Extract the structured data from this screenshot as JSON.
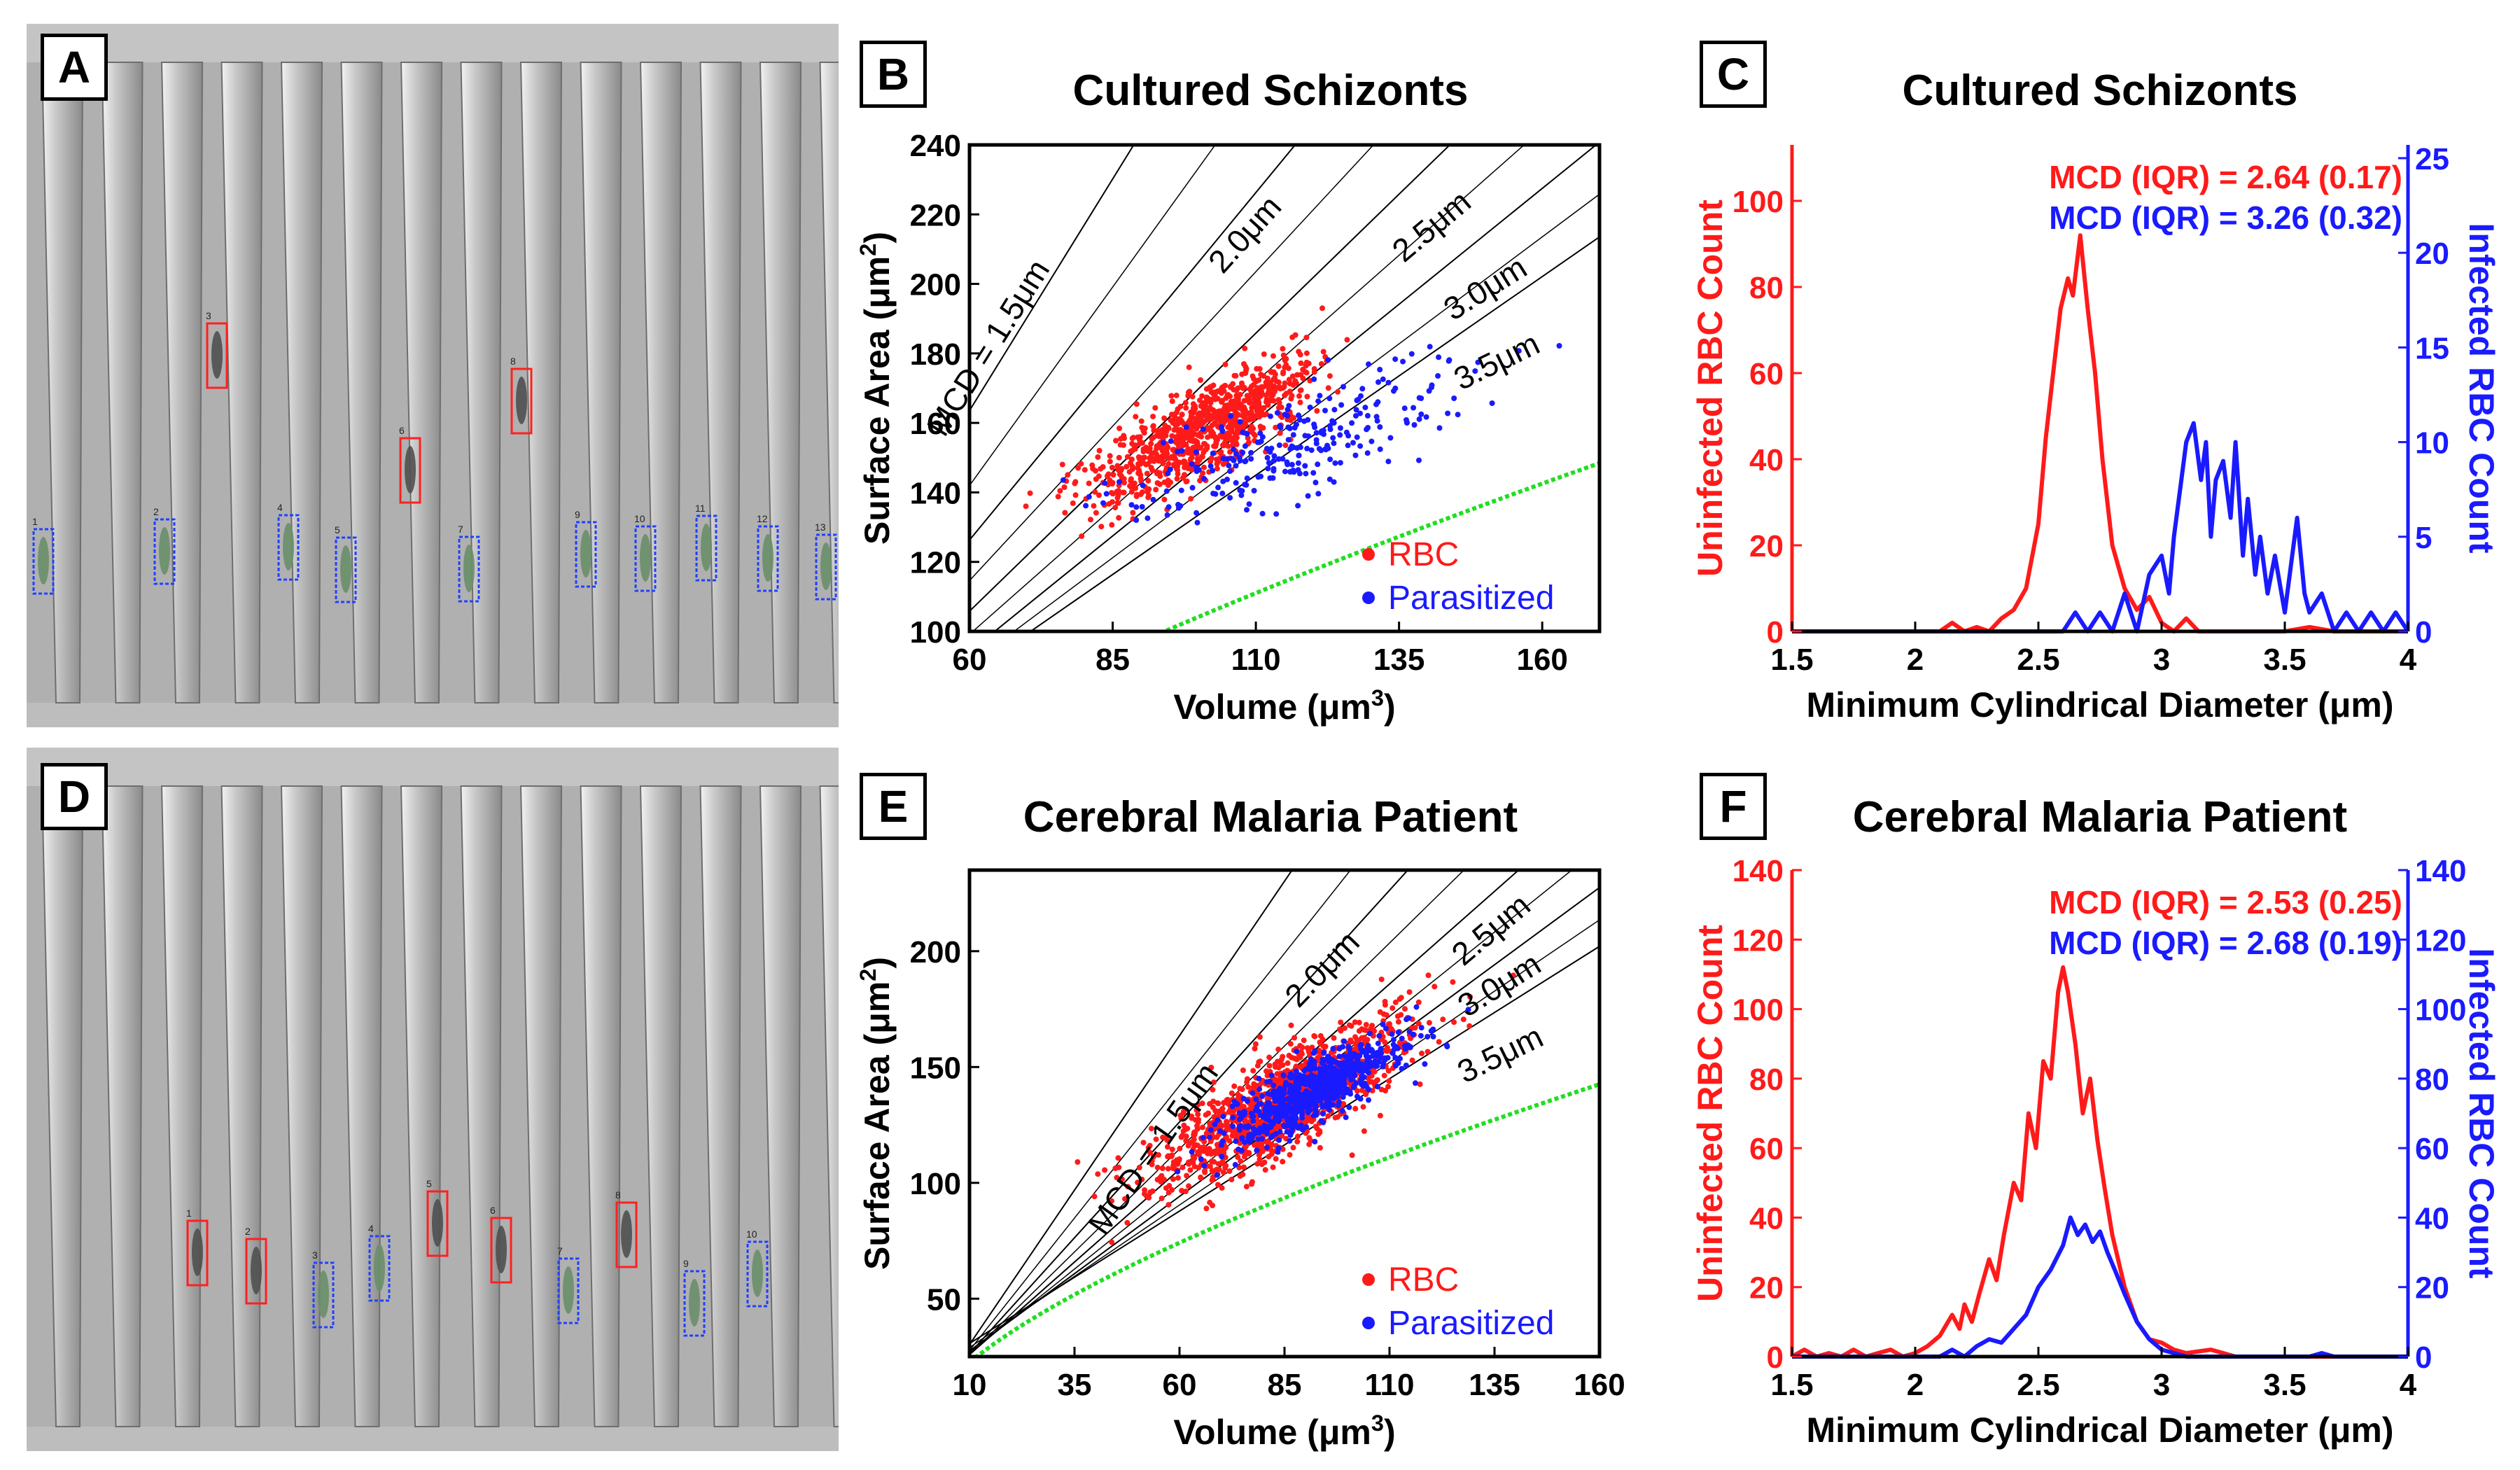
{
  "panels": {
    "a": "A",
    "b": "B",
    "c": "C",
    "d": "D",
    "e": "E",
    "f": "F"
  },
  "micrograph_a": {
    "cells": [
      {
        "label": "1",
        "box": "blue"
      },
      {
        "label": "2",
        "box": "blue"
      },
      {
        "label": "3",
        "box": "red"
      },
      {
        "label": "4",
        "box": "blue"
      },
      {
        "label": "5",
        "box": "blue"
      },
      {
        "label": "6",
        "box": "red"
      },
      {
        "label": "7",
        "box": "blue"
      },
      {
        "label": "8",
        "box": "red"
      },
      {
        "label": "9",
        "box": "blue"
      },
      {
        "label": "10",
        "box": "blue"
      },
      {
        "label": "11",
        "box": "blue"
      },
      {
        "label": "12",
        "box": "blue"
      },
      {
        "label": "13",
        "box": "blue"
      }
    ]
  },
  "micrograph_d": {
    "cells": [
      {
        "label": "1",
        "box": "red"
      },
      {
        "label": "2",
        "box": "red"
      },
      {
        "label": "3",
        "box": "blue"
      },
      {
        "label": "4",
        "box": "blue"
      },
      {
        "label": "5",
        "box": "red"
      },
      {
        "label": "6",
        "box": "red"
      },
      {
        "label": "7",
        "box": "blue"
      },
      {
        "label": "8",
        "box": "red"
      },
      {
        "label": "9",
        "box": "blue"
      },
      {
        "label": "10",
        "box": "blue"
      }
    ]
  },
  "colors": {
    "rbc": "#ff1a1a",
    "parasitized": "#1a1aff",
    "limit": "#22dd22",
    "axis": "#000000"
  },
  "chart_data": [
    {
      "id": "B",
      "type": "scatter",
      "title": "Cultured Schizonts",
      "xlabel": "Volume (μm³)",
      "ylabel": "Surface Area (μm²)",
      "xlim": [
        60,
        170
      ],
      "ylim": [
        100,
        240
      ],
      "xticks": [
        60,
        85,
        110,
        135,
        160
      ],
      "yticks": [
        100,
        120,
        140,
        160,
        180,
        200,
        220,
        240
      ],
      "series": [
        {
          "name": "RBC",
          "color": "#ff1a1a",
          "center": [
            101,
            158
          ],
          "spread": [
            10,
            9
          ],
          "slope": 0.85,
          "count": 900
        },
        {
          "name": "Parasitized",
          "color": "#1a1aff",
          "center": [
            117,
            154
          ],
          "spread": [
            14,
            10
          ],
          "slope": 0.55,
          "count": 260
        }
      ],
      "mcd_lines": [
        {
          "label": "MCD = 1.5μm"
        },
        {
          "label": "2.0μm"
        },
        {
          "label": "2.5μm"
        },
        {
          "label": "3.0μm"
        },
        {
          "label": "3.5μm"
        }
      ],
      "limit_curve": {
        "type": "sphere",
        "color": "#22dd22"
      },
      "legend": {
        "position": "bottom-right",
        "entries": [
          "RBC",
          "Parasitized"
        ]
      }
    },
    {
      "id": "C",
      "type": "line",
      "title": "Cultured Schizonts",
      "xlabel": "Minimum Cylindrical Diameter (μm)",
      "ylabel_left": "Uninfected RBC Count",
      "ylabel_right": "Infected RBC Count",
      "xlim": [
        1.5,
        4
      ],
      "ylim_left": [
        0,
        113
      ],
      "ylim_right": [
        0,
        25.7
      ],
      "xticks": [
        1.5,
        2,
        2.5,
        3,
        3.5,
        4
      ],
      "xtick_labels": [
        "1.5",
        "2",
        "2.5",
        "3",
        "3.5",
        "4"
      ],
      "yticks_left": [
        0,
        20,
        40,
        60,
        80,
        100
      ],
      "yticks_right": [
        0,
        5,
        10,
        15,
        20,
        25
      ],
      "annotations": [
        {
          "text": "MCD (IQR) =  2.64 (0.17)",
          "color": "#ff1a1a"
        },
        {
          "text": "MCD (IQR) =  3.26 (0.32)",
          "color": "#1a1aff"
        }
      ],
      "series": [
        {
          "name": "Uninfected",
          "axis": "left",
          "color": "#ff1a1a",
          "points": [
            [
              1.5,
              0
            ],
            [
              2.0,
              0
            ],
            [
              2.1,
              0
            ],
            [
              2.15,
              2
            ],
            [
              2.2,
              0
            ],
            [
              2.25,
              1
            ],
            [
              2.3,
              0
            ],
            [
              2.35,
              3
            ],
            [
              2.4,
              5
            ],
            [
              2.45,
              10
            ],
            [
              2.5,
              25
            ],
            [
              2.53,
              45
            ],
            [
              2.56,
              60
            ],
            [
              2.59,
              75
            ],
            [
              2.62,
              82
            ],
            [
              2.64,
              78
            ],
            [
              2.67,
              92
            ],
            [
              2.7,
              75
            ],
            [
              2.73,
              60
            ],
            [
              2.76,
              40
            ],
            [
              2.8,
              20
            ],
            [
              2.85,
              10
            ],
            [
              2.9,
              5
            ],
            [
              2.95,
              8
            ],
            [
              3.0,
              2
            ],
            [
              3.05,
              0
            ],
            [
              3.1,
              3
            ],
            [
              3.15,
              0
            ],
            [
              3.5,
              0
            ],
            [
              3.6,
              1
            ],
            [
              3.7,
              0
            ],
            [
              4.0,
              0
            ]
          ]
        },
        {
          "name": "Infected",
          "axis": "right",
          "color": "#1a1aff",
          "points": [
            [
              1.5,
              0
            ],
            [
              1.6,
              0
            ],
            [
              2.6,
              0
            ],
            [
              2.65,
              1
            ],
            [
              2.7,
              0
            ],
            [
              2.75,
              1
            ],
            [
              2.8,
              0
            ],
            [
              2.85,
              2
            ],
            [
              2.9,
              0
            ],
            [
              2.95,
              3
            ],
            [
              3.0,
              4
            ],
            [
              3.03,
              2
            ],
            [
              3.05,
              5
            ],
            [
              3.08,
              8
            ],
            [
              3.1,
              10
            ],
            [
              3.13,
              11
            ],
            [
              3.16,
              8
            ],
            [
              3.18,
              10
            ],
            [
              3.2,
              5
            ],
            [
              3.22,
              8
            ],
            [
              3.25,
              9
            ],
            [
              3.28,
              6
            ],
            [
              3.3,
              10
            ],
            [
              3.33,
              4
            ],
            [
              3.35,
              7
            ],
            [
              3.38,
              3
            ],
            [
              3.4,
              5
            ],
            [
              3.43,
              2
            ],
            [
              3.46,
              4
            ],
            [
              3.5,
              1
            ],
            [
              3.55,
              6
            ],
            [
              3.58,
              2
            ],
            [
              3.6,
              1
            ],
            [
              3.65,
              2
            ],
            [
              3.7,
              0
            ],
            [
              3.75,
              1
            ],
            [
              3.8,
              0
            ],
            [
              3.85,
              1
            ],
            [
              3.9,
              0
            ],
            [
              3.95,
              1
            ],
            [
              4.0,
              0
            ]
          ]
        }
      ]
    },
    {
      "id": "E",
      "type": "scatter",
      "title": "Cerebral Malaria Patient",
      "xlabel": "Volume (μm³)",
      "ylabel": "Surface Area (μm²)",
      "xlim": [
        10,
        160
      ],
      "ylim": [
        25,
        235
      ],
      "xticks": [
        10,
        35,
        60,
        85,
        110,
        135,
        160
      ],
      "yticks": [
        50,
        100,
        150,
        200
      ],
      "series": [
        {
          "name": "RBC",
          "color": "#ff1a1a",
          "center": [
            85,
            135
          ],
          "spread": [
            15,
            14
          ],
          "slope": 0.95,
          "count": 1300
        },
        {
          "name": "Parasitized",
          "color": "#1a1aff",
          "center": [
            92,
            140
          ],
          "spread": [
            10,
            9
          ],
          "slope": 0.9,
          "count": 800
        }
      ],
      "mcd_lines": [
        {
          "label": "MCD = 1.5μm"
        },
        {
          "label": "2.0μm"
        },
        {
          "label": "2.5μm"
        },
        {
          "label": "3.0μm"
        },
        {
          "label": "3.5μm"
        }
      ],
      "limit_curve": {
        "type": "sphere",
        "color": "#22dd22"
      },
      "legend": {
        "position": "bottom-right",
        "entries": [
          "RBC",
          "Parasitized"
        ]
      }
    },
    {
      "id": "F",
      "type": "line",
      "title": "Cerebral Malaria Patient",
      "xlabel": "Minimum Cylindrical Diameter (μm)",
      "ylabel_left": "Uninfected RBC Count",
      "ylabel_right": "Infected RBC Count",
      "xlim": [
        1.5,
        4
      ],
      "ylim_left": [
        0,
        140
      ],
      "ylim_right": [
        0,
        140
      ],
      "xticks": [
        1.5,
        2,
        2.5,
        3,
        3.5,
        4
      ],
      "xtick_labels": [
        "1.5",
        "2",
        "2.5",
        "3",
        "3.5",
        "4"
      ],
      "yticks_left": [
        0,
        20,
        40,
        60,
        80,
        100,
        120,
        140
      ],
      "yticks_right": [
        0,
        20,
        40,
        60,
        80,
        100,
        120,
        140
      ],
      "annotations": [
        {
          "text": "MCD (IQR) =  2.53 (0.25)",
          "color": "#ff1a1a"
        },
        {
          "text": "MCD (IQR) =  2.68 (0.19)",
          "color": "#1a1aff"
        }
      ],
      "series": [
        {
          "name": "Uninfected",
          "axis": "left",
          "color": "#ff1a1a",
          "points": [
            [
              1.5,
              0
            ],
            [
              1.55,
              2
            ],
            [
              1.6,
              0
            ],
            [
              1.65,
              1
            ],
            [
              1.7,
              0
            ],
            [
              1.75,
              2
            ],
            [
              1.8,
              0
            ],
            [
              1.85,
              1
            ],
            [
              1.9,
              2
            ],
            [
              1.95,
              0
            ],
            [
              2.0,
              1
            ],
            [
              2.05,
              3
            ],
            [
              2.1,
              6
            ],
            [
              2.15,
              12
            ],
            [
              2.18,
              8
            ],
            [
              2.2,
              15
            ],
            [
              2.23,
              10
            ],
            [
              2.26,
              18
            ],
            [
              2.3,
              28
            ],
            [
              2.33,
              22
            ],
            [
              2.36,
              35
            ],
            [
              2.4,
              50
            ],
            [
              2.43,
              45
            ],
            [
              2.46,
              70
            ],
            [
              2.49,
              60
            ],
            [
              2.52,
              85
            ],
            [
              2.55,
              80
            ],
            [
              2.58,
              105
            ],
            [
              2.6,
              112
            ],
            [
              2.62,
              105
            ],
            [
              2.65,
              90
            ],
            [
              2.68,
              70
            ],
            [
              2.71,
              80
            ],
            [
              2.74,
              62
            ],
            [
              2.77,
              48
            ],
            [
              2.8,
              35
            ],
            [
              2.85,
              20
            ],
            [
              2.9,
              10
            ],
            [
              2.95,
              5
            ],
            [
              3.0,
              4
            ],
            [
              3.05,
              2
            ],
            [
              3.1,
              1
            ],
            [
              3.2,
              2
            ],
            [
              3.3,
              0
            ],
            [
              4.0,
              0
            ]
          ]
        },
        {
          "name": "Infected",
          "axis": "right",
          "color": "#1a1aff",
          "points": [
            [
              1.5,
              0
            ],
            [
              2.1,
              0
            ],
            [
              2.15,
              2
            ],
            [
              2.2,
              0
            ],
            [
              2.25,
              3
            ],
            [
              2.3,
              5
            ],
            [
              2.35,
              4
            ],
            [
              2.4,
              8
            ],
            [
              2.45,
              12
            ],
            [
              2.5,
              20
            ],
            [
              2.55,
              25
            ],
            [
              2.6,
              32
            ],
            [
              2.63,
              40
            ],
            [
              2.66,
              35
            ],
            [
              2.69,
              38
            ],
            [
              2.72,
              33
            ],
            [
              2.75,
              36
            ],
            [
              2.78,
              30
            ],
            [
              2.81,
              25
            ],
            [
              2.85,
              18
            ],
            [
              2.9,
              10
            ],
            [
              2.95,
              5
            ],
            [
              3.0,
              2
            ],
            [
              3.05,
              1
            ],
            [
              3.1,
              0
            ],
            [
              3.6,
              0
            ],
            [
              3.65,
              1
            ],
            [
              3.7,
              0
            ],
            [
              4.0,
              0
            ]
          ]
        }
      ]
    }
  ]
}
